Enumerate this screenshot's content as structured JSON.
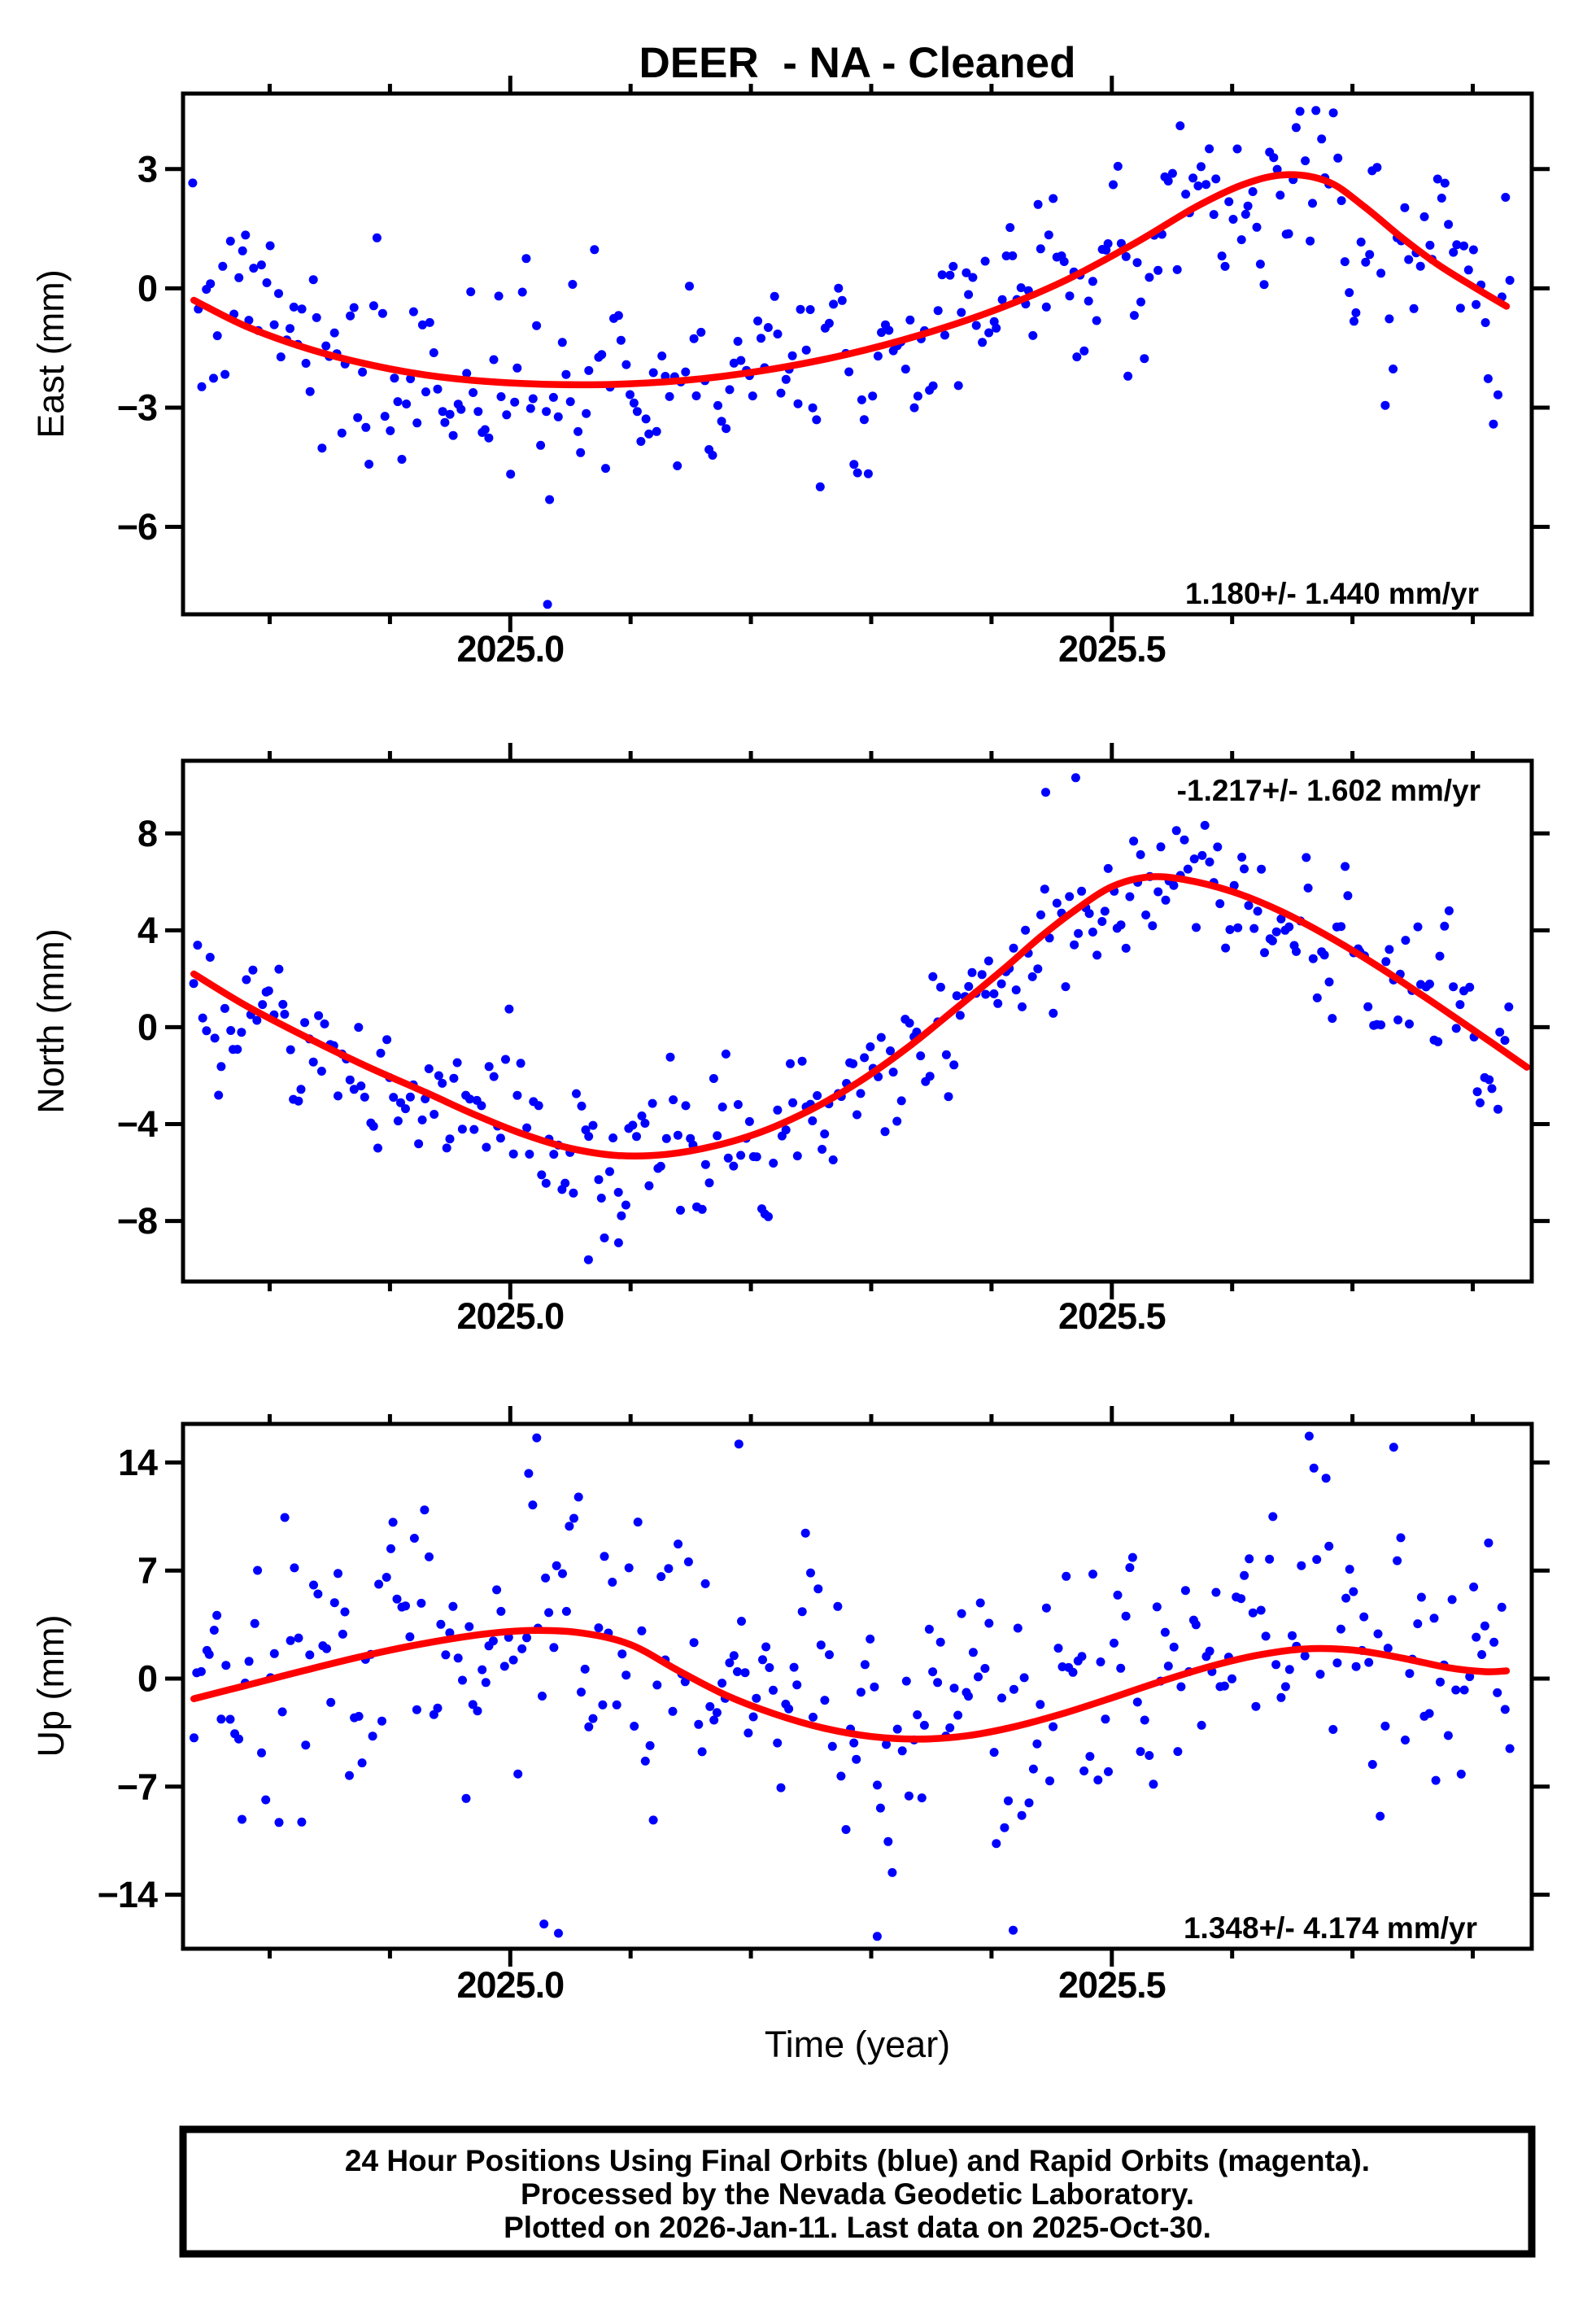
{
  "title": "DEER  - NA - Cleaned",
  "xlabel": "Time (year)",
  "caption": {
    "lines": [
      "24 Hour Positions Using Final Orbits (blue) and Rapid Orbits (magenta).",
      "Processed by the Nevada Geodetic Laboratory.",
      "Plotted on 2026-Jan-11. Last data on 2025-Oct-30."
    ]
  },
  "colors": {
    "point_blue": "#0000ff",
    "trend_red": "#ff0000",
    "frame_black": "#000000",
    "background": "#ffffff"
  },
  "x_axis": {
    "range": [
      2024.728,
      2025.849
    ],
    "major_ticks": [
      {
        "value": 2025.0,
        "label": "2025.0"
      },
      {
        "value": 2025.5,
        "label": "2025.5"
      }
    ],
    "minor_tick_interval": 0.1,
    "minor_tick_start": 2024.8,
    "minor_tick_end": 2025.8
  },
  "chart_data": [
    {
      "type": "scatter",
      "name": "east",
      "ylabel": "East (mm)",
      "rate_label": "1.180+/- 1.440 mm/yr",
      "y_range": [
        4.9,
        -8.2
      ],
      "yticks": [
        {
          "value": 3,
          "label": "3"
        },
        {
          "value": 0,
          "label": "0"
        },
        {
          "value": -3,
          "label": "−3"
        },
        {
          "value": -6,
          "label": "−6"
        }
      ],
      "trend": [
        [
          2024.737,
          -0.3
        ],
        [
          2024.78,
          -0.95
        ],
        [
          2024.83,
          -1.5
        ],
        [
          2024.88,
          -1.9
        ],
        [
          2024.93,
          -2.18
        ],
        [
          2024.98,
          -2.34
        ],
        [
          2025.04,
          -2.42
        ],
        [
          2025.1,
          -2.4
        ],
        [
          2025.16,
          -2.27
        ],
        [
          2025.22,
          -2.02
        ],
        [
          2025.28,
          -1.66
        ],
        [
          2025.34,
          -1.18
        ],
        [
          2025.4,
          -0.58
        ],
        [
          2025.46,
          0.18
        ],
        [
          2025.52,
          1.15
        ],
        [
          2025.57,
          2.05
        ],
        [
          2025.61,
          2.62
        ],
        [
          2025.645,
          2.86
        ],
        [
          2025.68,
          2.68
        ],
        [
          2025.71,
          2.05
        ],
        [
          2025.74,
          1.3
        ],
        [
          2025.77,
          0.62
        ],
        [
          2025.8,
          0.05
        ],
        [
          2025.828,
          -0.45
        ]
      ],
      "scatter": {
        "n": 330,
        "seed": 7,
        "sigma": 1.35,
        "ar": 0.35,
        "t_start": 2024.737,
        "t_end": 2025.83,
        "clamp": [
          -6.9,
          4.6
        ],
        "outliers": [
          [
            2025.031,
            -7.95
          ]
        ]
      }
    },
    {
      "type": "scatter",
      "name": "north",
      "ylabel": "North (mm)",
      "rate_label": "-1.217+/- 1.602 mm/yr",
      "y_range": [
        11.0,
        -10.5
      ],
      "yticks": [
        {
          "value": 8,
          "label": "8"
        },
        {
          "value": 4,
          "label": "4"
        },
        {
          "value": 0,
          "label": "0"
        },
        {
          "value": -4,
          "label": "−4"
        },
        {
          "value": -8,
          "label": "−8"
        }
      ],
      "trend": [
        [
          2024.737,
          2.2
        ],
        [
          2024.78,
          0.9
        ],
        [
          2024.83,
          -0.4
        ],
        [
          2024.88,
          -1.6
        ],
        [
          2024.93,
          -2.7
        ],
        [
          2024.97,
          -3.6
        ],
        [
          2025.01,
          -4.4
        ],
        [
          2025.05,
          -5.0
        ],
        [
          2025.09,
          -5.3
        ],
        [
          2025.13,
          -5.25
        ],
        [
          2025.17,
          -4.9
        ],
        [
          2025.21,
          -4.3
        ],
        [
          2025.25,
          -3.4
        ],
        [
          2025.29,
          -2.25
        ],
        [
          2025.33,
          -0.85
        ],
        [
          2025.37,
          0.75
        ],
        [
          2025.41,
          2.4
        ],
        [
          2025.44,
          3.7
        ],
        [
          2025.47,
          4.85
        ],
        [
          2025.5,
          5.8
        ],
        [
          2025.53,
          6.2
        ],
        [
          2025.56,
          6.1
        ],
        [
          2025.6,
          5.6
        ],
        [
          2025.64,
          4.8
        ],
        [
          2025.68,
          3.75
        ],
        [
          2025.72,
          2.55
        ],
        [
          2025.76,
          1.25
        ],
        [
          2025.8,
          -0.1
        ],
        [
          2025.845,
          -1.65
        ]
      ],
      "scatter": {
        "n": 330,
        "seed": 21,
        "sigma": 1.6,
        "ar": 0.35,
        "t_start": 2024.737,
        "t_end": 2025.83,
        "clamp": [
          -8.8,
          9.2
        ],
        "outliers": [
          [
            2025.065,
            -9.6
          ],
          [
            2025.09,
            -8.9
          ],
          [
            2025.445,
            9.7
          ],
          [
            2025.47,
            10.3
          ]
        ]
      }
    },
    {
      "type": "scatter",
      "name": "up",
      "ylabel": "Up (mm)",
      "rate_label": "1.348+/- 4.174 mm/yr",
      "y_range": [
        16.5,
        -17.5
      ],
      "yticks": [
        {
          "value": 14,
          "label": "14"
        },
        {
          "value": 7,
          "label": "7"
        },
        {
          "value": 0,
          "label": "0"
        },
        {
          "value": -7,
          "label": "−7"
        },
        {
          "value": -14,
          "label": "−14"
        }
      ],
      "trend": [
        [
          2024.737,
          -1.3
        ],
        [
          2024.78,
          -0.45
        ],
        [
          2024.83,
          0.55
        ],
        [
          2024.88,
          1.5
        ],
        [
          2024.93,
          2.3
        ],
        [
          2024.98,
          2.9
        ],
        [
          2025.02,
          3.12
        ],
        [
          2025.06,
          2.95
        ],
        [
          2025.1,
          2.2
        ],
        [
          2025.14,
          0.5
        ],
        [
          2025.18,
          -1.1
        ],
        [
          2025.22,
          -2.3
        ],
        [
          2025.26,
          -3.2
        ],
        [
          2025.3,
          -3.75
        ],
        [
          2025.34,
          -3.92
        ],
        [
          2025.38,
          -3.7
        ],
        [
          2025.42,
          -3.1
        ],
        [
          2025.46,
          -2.25
        ],
        [
          2025.5,
          -1.25
        ],
        [
          2025.54,
          -0.2
        ],
        [
          2025.58,
          0.75
        ],
        [
          2025.62,
          1.5
        ],
        [
          2025.66,
          1.92
        ],
        [
          2025.7,
          1.85
        ],
        [
          2025.74,
          1.35
        ],
        [
          2025.78,
          0.7
        ],
        [
          2025.81,
          0.45
        ],
        [
          2025.828,
          0.5
        ]
      ],
      "scatter": {
        "n": 330,
        "seed": 33,
        "sigma": 4.7,
        "ar": 0.3,
        "t_start": 2024.737,
        "t_end": 2025.83,
        "clamp": [
          -15.8,
          15.8
        ],
        "outliers": [
          [
            2025.022,
            15.6
          ],
          [
            2025.19,
            15.2
          ],
          [
            2025.028,
            -15.9
          ],
          [
            2025.04,
            -16.5
          ],
          [
            2025.305,
            -16.7
          ],
          [
            2025.418,
            -16.3
          ]
        ]
      }
    }
  ]
}
